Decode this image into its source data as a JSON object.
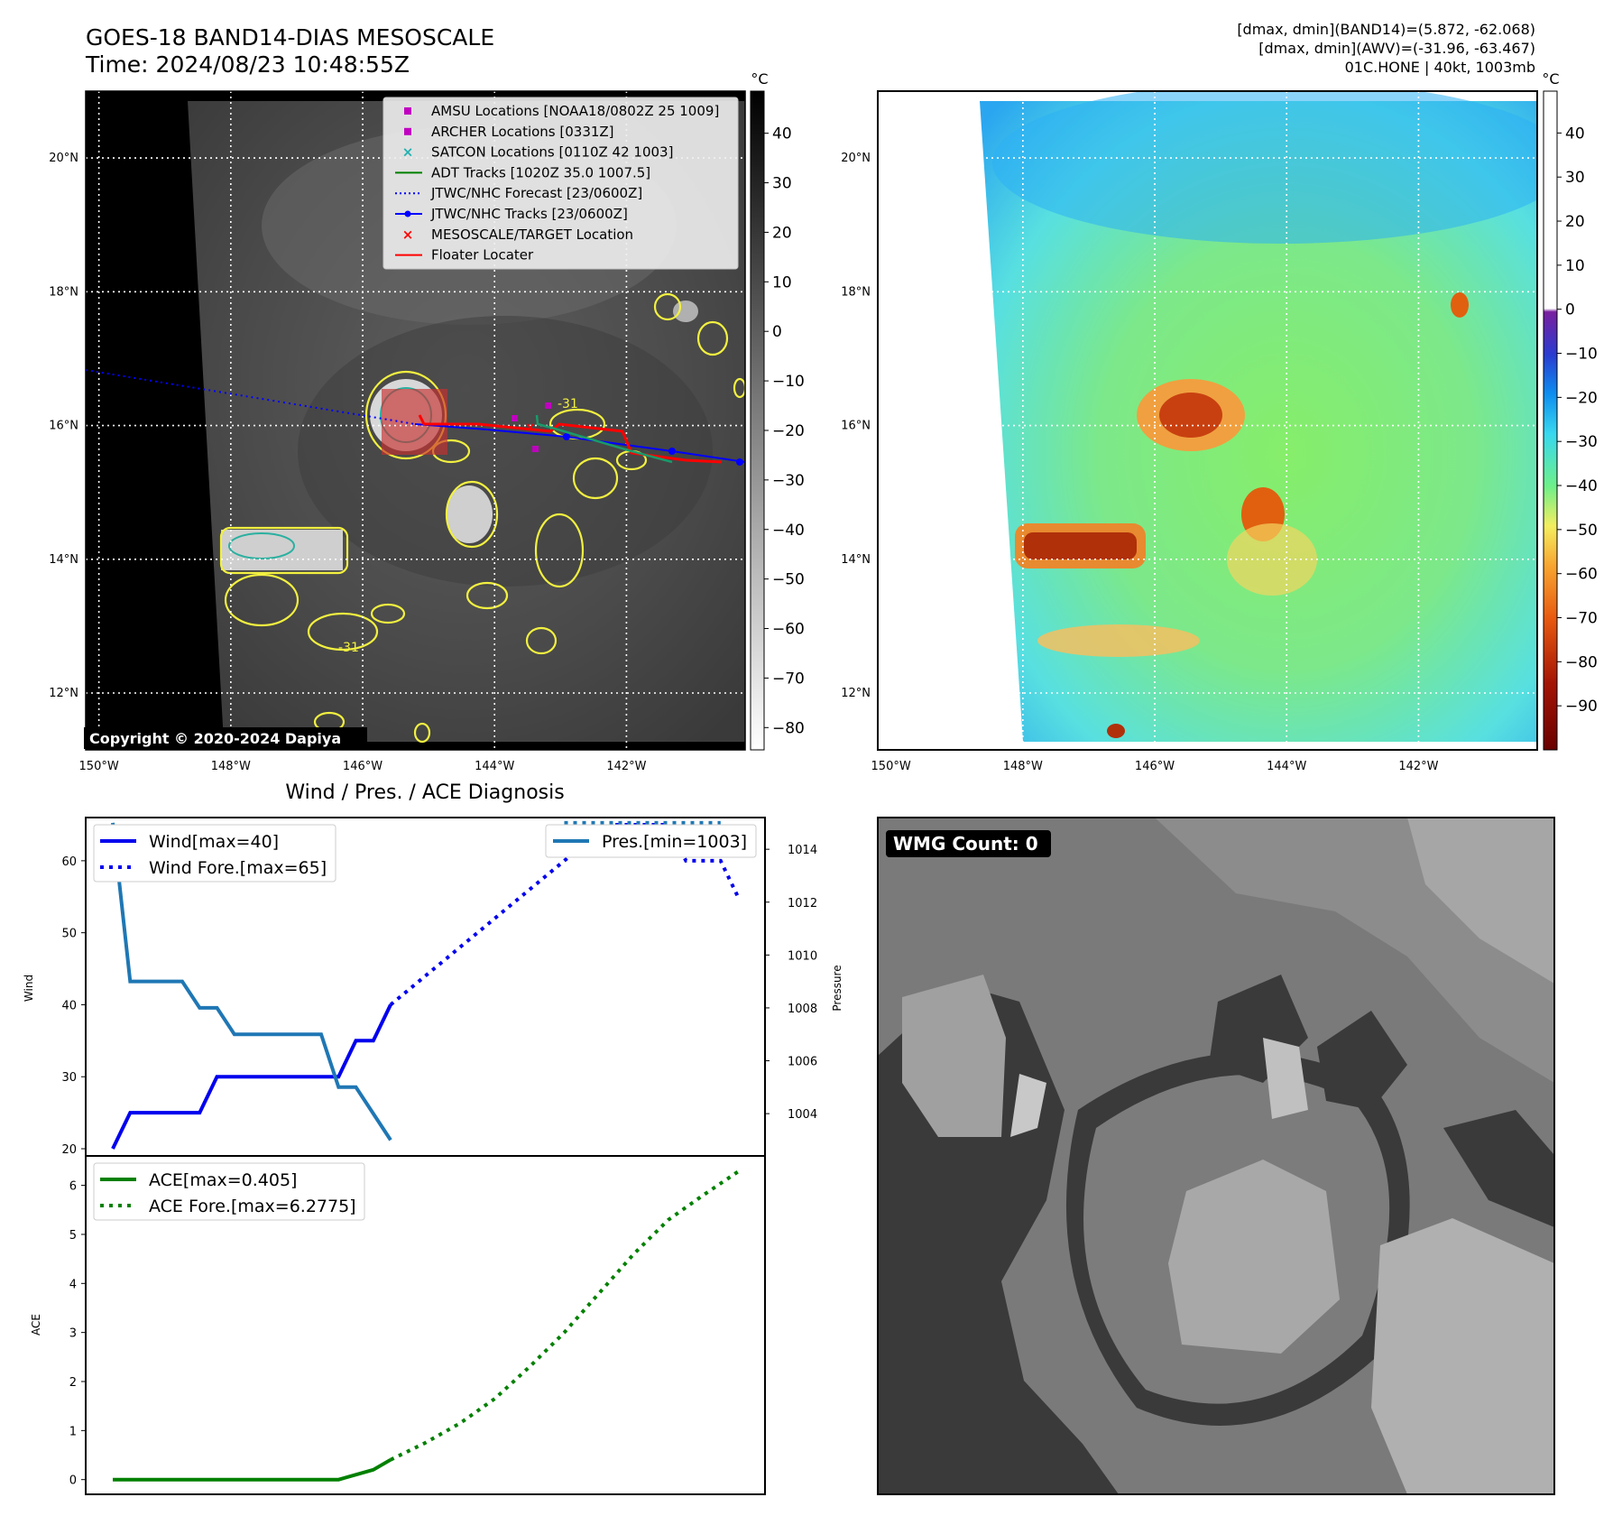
{
  "header": {
    "title_line1": "GOES-18 BAND14-DIAS MESOSCALE",
    "title_line2": "Time: 2024/08/23 10:48:55Z",
    "info_line1": "[dmax, dmin](BAND14)=(5.872, -62.068)",
    "info_line2": "[dmax, dmin](AWV)=(-31.96, -63.467)",
    "info_line3": "01C.HONE | 40kt, 1003mb"
  },
  "map": {
    "lon_ticks": [
      "150°W",
      "148°W",
      "146°W",
      "144°W",
      "142°W"
    ],
    "lat_ticks": [
      "20°N",
      "18°N",
      "16°N",
      "14°N",
      "12°N"
    ],
    "lon_values": [
      -150,
      -148,
      -146,
      -144,
      -142
    ],
    "lat_values": [
      20,
      18,
      16,
      14,
      12
    ],
    "lon_range": [
      -150.2,
      -140.2
    ],
    "lat_range": [
      11.15,
      21.0
    ],
    "copyright": "Copyright © 2020-2024 Dapiya",
    "contour_label": "-31",
    "legend": [
      {
        "label": "AMSU Locations [NOAA18/0802Z 25 1009]",
        "icon": "square-marker",
        "color": "#c000c0"
      },
      {
        "label": "ARCHER Locations [0331Z]",
        "icon": "square-marker",
        "color": "#c000c0"
      },
      {
        "label": "SATCON Locations [0110Z 42 1003]",
        "icon": "x-marker",
        "color": "#20b0b0"
      },
      {
        "label": "ADT Tracks [1020Z 35.0 1007.5]",
        "icon": "solid-line",
        "color": "#008000"
      },
      {
        "label": "JTWC/NHC Forecast [23/0600Z]",
        "icon": "dotted-line",
        "color": "#0000ff"
      },
      {
        "label": "JTWC/NHC Tracks [23/0600Z]",
        "icon": "line-dot",
        "color": "#0000ff"
      },
      {
        "label": "MESOSCALE/TARGET Location",
        "icon": "x-marker",
        "color": "#ff0000"
      },
      {
        "label": "Floater Locater",
        "icon": "solid-line",
        "color": "#ff0000"
      }
    ]
  },
  "colorbar_left": {
    "unit": "°C",
    "ticks": [
      "40",
      "30",
      "20",
      "10",
      "0",
      "−10",
      "−20",
      "−30",
      "−40",
      "−50",
      "−60",
      "−70",
      "−80"
    ],
    "range": [
      48.5,
      -84.5
    ]
  },
  "colorbar_right": {
    "unit": "°C",
    "ticks": [
      "40",
      "30",
      "20",
      "10",
      "0",
      "−10",
      "−20",
      "−30",
      "−40",
      "−50",
      "−60",
      "−70",
      "−80",
      "−90"
    ],
    "range": [
      49.5,
      -100
    ]
  },
  "diagnosis": {
    "title": "Wind / Pres. / ACE Diagnosis",
    "wind_ylabel": "Wind",
    "pres_ylabel": "Pressure",
    "ace_ylabel": "ACE",
    "wind_ticks": [
      "60",
      "50",
      "40",
      "30",
      "20"
    ],
    "pres_ticks": [
      "1014",
      "1012",
      "1010",
      "1008",
      "1006",
      "1004"
    ],
    "ace_ticks": [
      "6",
      "5",
      "4",
      "3",
      "2",
      "1",
      "0"
    ],
    "wind_legend": [
      "Wind[max=40]",
      "Wind Fore.[max=65]"
    ],
    "pres_legend": [
      "Pres.[min=1003]"
    ],
    "ace_legend": [
      "ACE[max=0.405]",
      "ACE Fore.[max=6.2775]"
    ],
    "wmg_label": "WMG Count: 0"
  },
  "chart_data": [
    {
      "type": "line",
      "x": [
        0,
        1,
        2,
        3,
        4,
        5,
        6,
        7,
        8,
        9,
        10,
        11,
        12,
        13,
        14,
        15,
        16
      ],
      "wind_range": [
        19,
        66
      ],
      "pressure_range": [
        1002.4,
        1015.2
      ],
      "series": [
        {
          "name": "Wind[max=40]",
          "axis": "wind",
          "style": "solid",
          "color": "#0000ee",
          "x": [
            0,
            1,
            2,
            3,
            4,
            5,
            6,
            7,
            8,
            9,
            10,
            11,
            12,
            13,
            14,
            15,
            16
          ],
          "values": [
            20,
            25,
            25,
            25,
            25,
            25,
            30,
            30,
            30,
            30,
            30,
            30,
            30,
            30,
            35,
            35,
            40
          ]
        },
        {
          "name": "Wind Fore.[max=65]",
          "axis": "wind",
          "style": "dotted",
          "color": "#0000ee",
          "x": [
            16,
            17,
            18,
            19,
            20,
            21,
            22,
            23,
            24,
            25,
            26,
            27,
            28,
            29,
            30,
            31,
            32,
            33,
            34,
            35,
            36
          ],
          "values": [
            40,
            42,
            44,
            46,
            48,
            50,
            52,
            54,
            56,
            58,
            60,
            62,
            64,
            65,
            65,
            65,
            65,
            60,
            60,
            60,
            55
          ]
        },
        {
          "name": "Pres.[min=1003]",
          "axis": "pressure",
          "style": "solid",
          "color": "#1f77b4",
          "x": [
            0,
            1,
            2,
            3,
            4,
            5,
            6,
            7,
            8,
            9,
            10,
            11,
            12,
            13,
            14,
            15,
            16
          ],
          "values": [
            1015,
            1009,
            1009,
            1009,
            1009,
            1008,
            1008,
            1007,
            1007,
            1007,
            1007,
            1007,
            1007,
            1005,
            1005,
            1004,
            1003
          ]
        },
        {
          "name": "Pres.[min=1003]",
          "axis": "pressure",
          "style": "dotted",
          "color": "#1f77b4",
          "x": [
            26,
            27,
            28,
            29,
            30,
            31,
            32,
            33,
            34,
            35
          ],
          "values": [
            1015,
            1015,
            1015,
            1015,
            1015,
            1015,
            1015,
            1015,
            1015,
            1015
          ]
        }
      ]
    },
    {
      "type": "line",
      "ylim": [
        -0.3,
        6.6
      ],
      "series": [
        {
          "name": "ACE[max=0.405]",
          "style": "solid",
          "color": "#008000",
          "x": [
            0,
            13,
            15,
            16
          ],
          "values": [
            0,
            0,
            0.2,
            0.405
          ]
        },
        {
          "name": "ACE Fore.[max=6.2775]",
          "style": "dotted",
          "color": "#008000",
          "x": [
            16,
            18,
            20,
            22,
            24,
            26,
            28,
            30,
            32,
            34,
            36
          ],
          "values": [
            0.405,
            0.75,
            1.15,
            1.65,
            2.3,
            3.0,
            3.8,
            4.6,
            5.3,
            5.8,
            6.2775
          ]
        }
      ]
    }
  ]
}
